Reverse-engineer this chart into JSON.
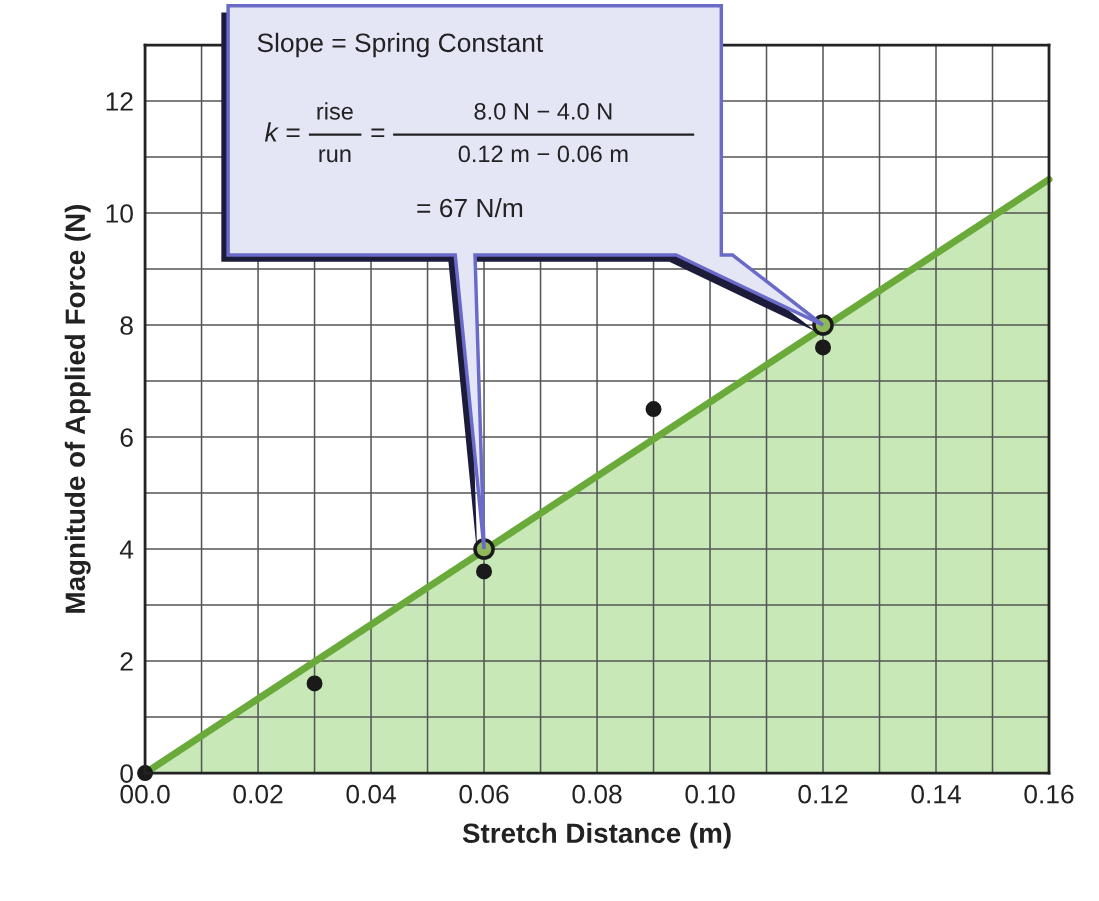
{
  "chart_data": {
    "type": "scatter",
    "xlabel": "Stretch Distance (m)",
    "ylabel": "Magnitude of Applied Force (N)",
    "xlim": [
      0,
      0.16
    ],
    "ylim": [
      0,
      13
    ],
    "xticks": [
      {
        "value": 0,
        "label": "00.0"
      },
      {
        "value": 0.01,
        "label": null
      },
      0.02,
      {
        "value": 0.03,
        "label": null
      },
      0.04,
      {
        "value": 0.05,
        "label": null
      },
      0.06,
      {
        "value": 0.07,
        "label": null
      },
      0.08,
      {
        "value": 0.09,
        "label": null
      },
      {
        "value": 0.1,
        "label": "0.10"
      },
      {
        "value": 0.11,
        "label": null
      },
      0.12,
      {
        "value": 0.13,
        "label": null
      },
      0.14,
      {
        "value": 0.15,
        "label": null
      },
      0.16
    ],
    "yticks": [
      0,
      {
        "value": 1,
        "label": null
      },
      2,
      {
        "value": 3,
        "label": null
      },
      4,
      {
        "value": 5,
        "label": null
      },
      6,
      {
        "value": 7,
        "label": null
      },
      8,
      {
        "value": 9,
        "label": null
      },
      10,
      {
        "value": 11,
        "label": null
      },
      12,
      {
        "value": 13,
        "label": null
      }
    ],
    "grid": true,
    "legend": false,
    "series": [
      {
        "type": "area",
        "x": [
          0,
          0.16
        ],
        "values": [
          0,
          10.6
        ],
        "color": "#6aaa3a",
        "marker": "none"
      },
      {
        "x": [
          0,
          0.03,
          0.06,
          0.09,
          0.12
        ],
        "values": [
          0,
          1.6,
          3.6,
          6.5,
          7.6
        ],
        "color": "#1a1a1a",
        "marker": "circle"
      },
      {
        "x": [
          0.06,
          0.12
        ],
        "values": [
          4,
          8
        ],
        "color": "#8fb85a",
        "marker": "circle"
      }
    ],
    "annotations": [
      "Slope = Spring Constant",
      "k =",
      "rise",
      "run",
      "=",
      "8.0 N − 4.0 N",
      "0.12 m − 0.06 m",
      "= 67 N/m"
    ]
  }
}
